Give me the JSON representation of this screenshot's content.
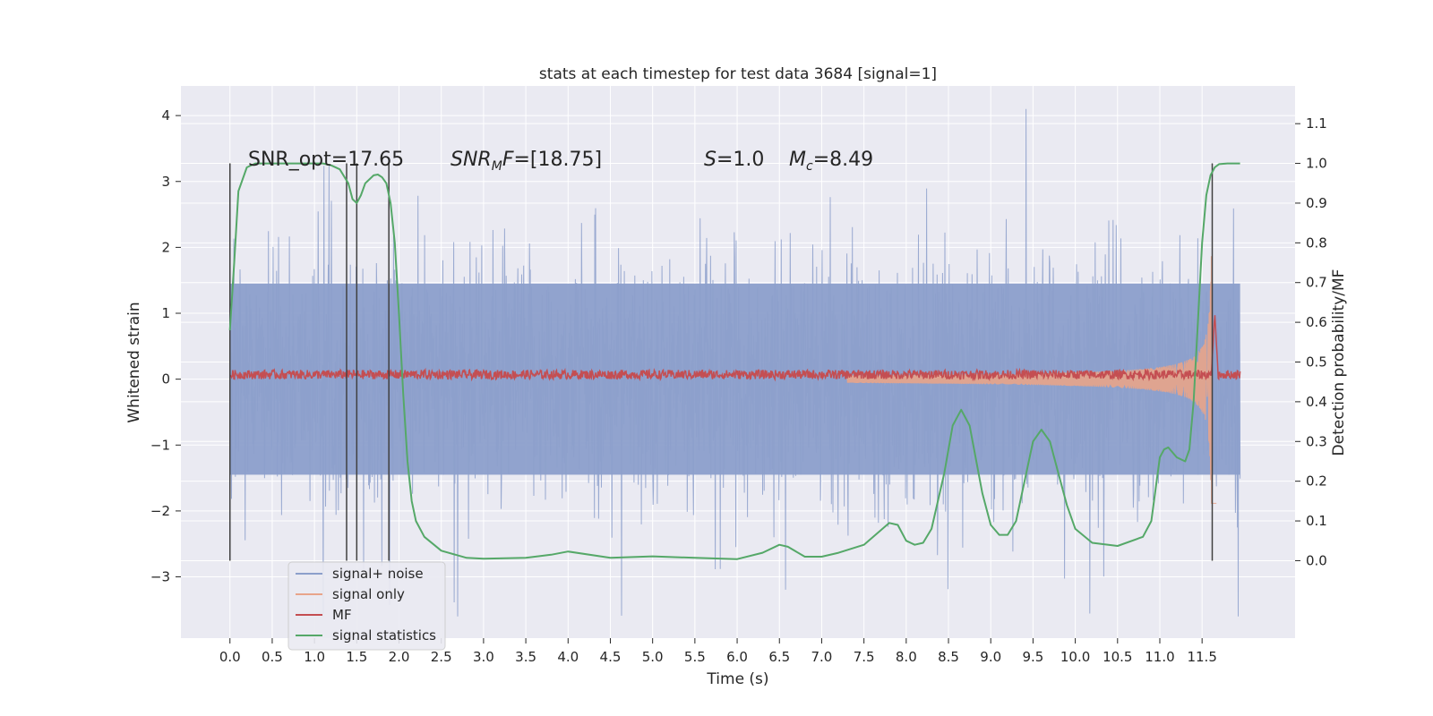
{
  "chart_data": {
    "type": "line",
    "title": "stats at each timestep for test data 3684 [signal=1]",
    "xlabel": "Time (s)",
    "ylabel": "Whitened strain",
    "y2label": "Detection probability/MF",
    "xlim": [
      -0.58,
      12.6
    ],
    "ylim": [
      -3.93,
      4.45
    ],
    "y2lim": [
      -0.195,
      1.195
    ],
    "x_ticks": [
      "0.0",
      "0.5",
      "1.0",
      "1.5",
      "2.0",
      "2.5",
      "3.0",
      "3.5",
      "4.0",
      "4.5",
      "5.0",
      "5.5",
      "6.0",
      "6.5",
      "7.0",
      "7.5",
      "8.0",
      "8.5",
      "9.0",
      "9.5",
      "10.0",
      "10.5",
      "11.0",
      "11.5"
    ],
    "y_ticks": [
      "−3",
      "−2",
      "−1",
      "0",
      "1",
      "2",
      "3",
      "4"
    ],
    "y2_ticks": [
      "0.0",
      "0.1",
      "0.2",
      "0.3",
      "0.4",
      "0.5",
      "0.6",
      "0.7",
      "0.8",
      "0.9",
      "1.0",
      "1.1"
    ],
    "grid": true,
    "legend_position": "lower-left",
    "annotations": {
      "snr_opt": "SNR_opt=17.65",
      "snr_mf": "SNR_MF=[18.75]",
      "s_value": "S=1.0",
      "mc_value": "M_c=8.49"
    },
    "series": [
      {
        "name": "signal+ noise",
        "color": "#8c9fcb",
        "kind": "noise",
        "envelope": [
          -2.6,
          2.5
        ],
        "duration": 11.95
      },
      {
        "name": "signal only",
        "color": "#e8a48a",
        "kind": "chirp",
        "merger_time": 11.62,
        "peak_amp": 1.9
      },
      {
        "name": "MF",
        "color": "#c44e52",
        "kind": "flat",
        "level": 0.07,
        "peak_time": 11.65,
        "peak": 1.0
      },
      {
        "name": "signal statistics",
        "color": "#55a868",
        "x": [
          0.0,
          0.05,
          0.1,
          0.2,
          0.3,
          0.5,
          0.8,
          1.0,
          1.1,
          1.2,
          1.3,
          1.4,
          1.45,
          1.5,
          1.55,
          1.6,
          1.7,
          1.75,
          1.8,
          1.85,
          1.9,
          1.95,
          2.0,
          2.05,
          2.1,
          2.15,
          2.2,
          2.3,
          2.5,
          2.8,
          3.0,
          3.5,
          3.8,
          4.0,
          4.5,
          5.0,
          5.5,
          6.0,
          6.3,
          6.5,
          6.6,
          6.8,
          7.0,
          7.2,
          7.5,
          7.8,
          7.9,
          8.0,
          8.1,
          8.2,
          8.3,
          8.45,
          8.55,
          8.65,
          8.75,
          8.9,
          9.0,
          9.1,
          9.2,
          9.3,
          9.5,
          9.6,
          9.7,
          9.8,
          9.9,
          10.0,
          10.2,
          10.5,
          10.8,
          10.9,
          11.0,
          11.05,
          11.1,
          11.2,
          11.3,
          11.35,
          11.4,
          11.45,
          11.5,
          11.55,
          11.6,
          11.65,
          11.7,
          11.8,
          11.95
        ],
        "y": [
          0.58,
          0.75,
          0.93,
          0.99,
          1.0,
          1.0,
          1.0,
          1.0,
          1.0,
          0.995,
          0.985,
          0.95,
          0.91,
          0.9,
          0.92,
          0.95,
          0.97,
          0.972,
          0.965,
          0.95,
          0.9,
          0.8,
          0.62,
          0.42,
          0.25,
          0.15,
          0.1,
          0.06,
          0.025,
          0.007,
          0.005,
          0.007,
          0.015,
          0.023,
          0.007,
          0.011,
          0.007,
          0.004,
          0.02,
          0.04,
          0.035,
          0.01,
          0.01,
          0.02,
          0.04,
          0.095,
          0.09,
          0.05,
          0.04,
          0.045,
          0.08,
          0.22,
          0.34,
          0.38,
          0.34,
          0.17,
          0.09,
          0.065,
          0.065,
          0.1,
          0.3,
          0.33,
          0.3,
          0.22,
          0.14,
          0.08,
          0.045,
          0.037,
          0.06,
          0.1,
          0.26,
          0.28,
          0.285,
          0.26,
          0.25,
          0.28,
          0.4,
          0.6,
          0.8,
          0.92,
          0.97,
          0.99,
          0.998,
          1.0,
          1.0
        ]
      }
    ],
    "vertical_markers": [
      0.0,
      1.38,
      1.5,
      1.88,
      11.62
    ]
  },
  "colors": {
    "plot_bg": "#eaeaf2",
    "grid": "#ffffff",
    "text": "#262626"
  }
}
